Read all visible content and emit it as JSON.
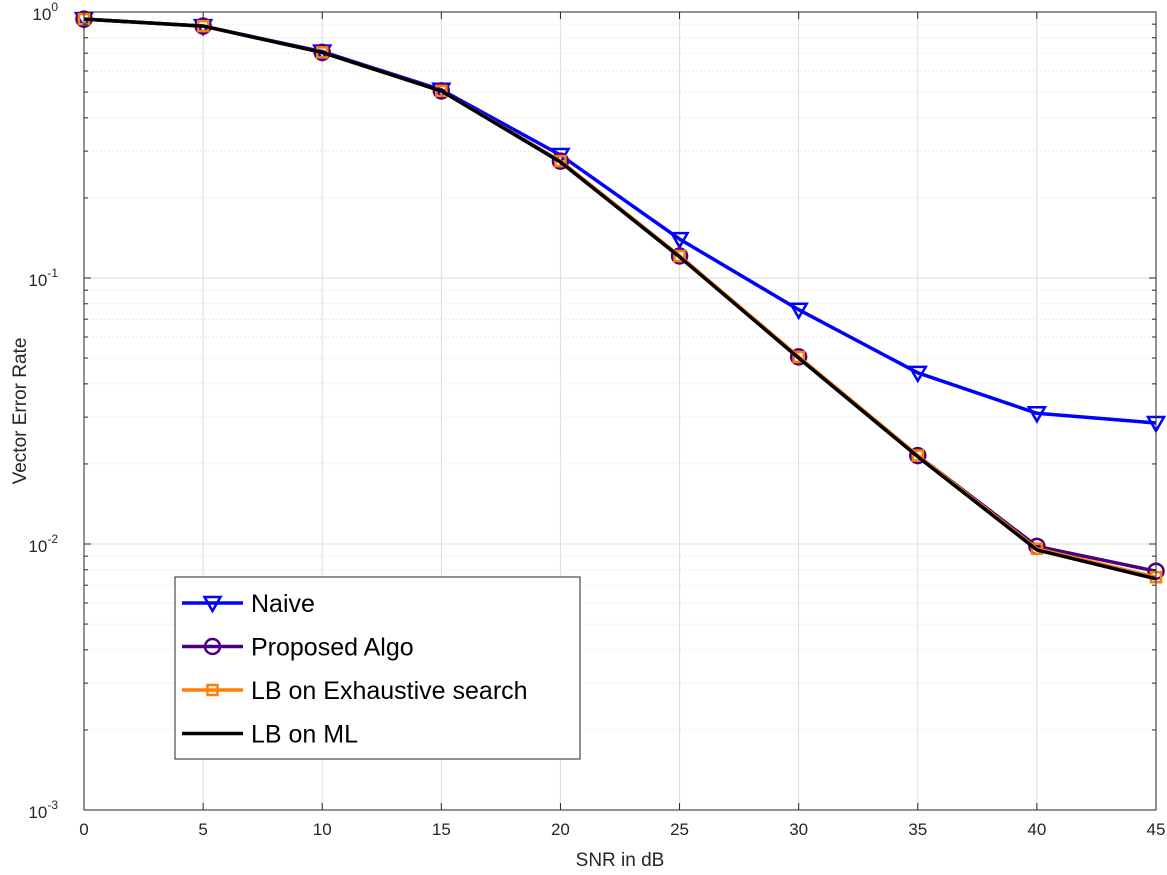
{
  "chart_data": {
    "type": "line",
    "xlabel": "SNR in dB",
    "ylabel": "Vector Error Rate",
    "x": [
      0,
      5,
      10,
      15,
      20,
      25,
      30,
      35,
      40,
      45
    ],
    "xlim": [
      0,
      45
    ],
    "ylim": [
      0.001,
      1
    ],
    "yscale": "log",
    "xticks": [
      "0",
      "5",
      "10",
      "15",
      "20",
      "25",
      "30",
      "35",
      "40",
      "45"
    ],
    "yticks": [
      {
        "value": 0.001,
        "base": "10",
        "exp": "-3"
      },
      {
        "value": 0.01,
        "base": "10",
        "exp": "-2"
      },
      {
        "value": 0.1,
        "base": "10",
        "exp": "-1"
      },
      {
        "value": 1,
        "base": "10",
        "exp": "0"
      }
    ],
    "grid": true,
    "legend_position": "bottom-left",
    "series": [
      {
        "name": "Naive",
        "color": "#0000ff",
        "marker": "triangle-down",
        "values": [
          0.94,
          0.885,
          0.71,
          0.51,
          0.29,
          0.14,
          0.076,
          0.044,
          0.031,
          0.0285
        ]
      },
      {
        "name": "Proposed Algo",
        "color": "#4b0082",
        "marker": "circle",
        "values": [
          0.94,
          0.885,
          0.705,
          0.505,
          0.275,
          0.121,
          0.0505,
          0.0215,
          0.0098,
          0.0079
        ]
      },
      {
        "name": "LB on Exhaustive search",
        "color": "#ff7f00",
        "marker": "square",
        "values": [
          0.94,
          0.885,
          0.705,
          0.505,
          0.275,
          0.121,
          0.0505,
          0.0215,
          0.0096,
          0.0075
        ]
      },
      {
        "name": "LB on ML",
        "color": "#000000",
        "marker": "none",
        "values": [
          0.94,
          0.885,
          0.705,
          0.505,
          0.273,
          0.12,
          0.05,
          0.0213,
          0.0095,
          0.0074
        ]
      }
    ]
  }
}
